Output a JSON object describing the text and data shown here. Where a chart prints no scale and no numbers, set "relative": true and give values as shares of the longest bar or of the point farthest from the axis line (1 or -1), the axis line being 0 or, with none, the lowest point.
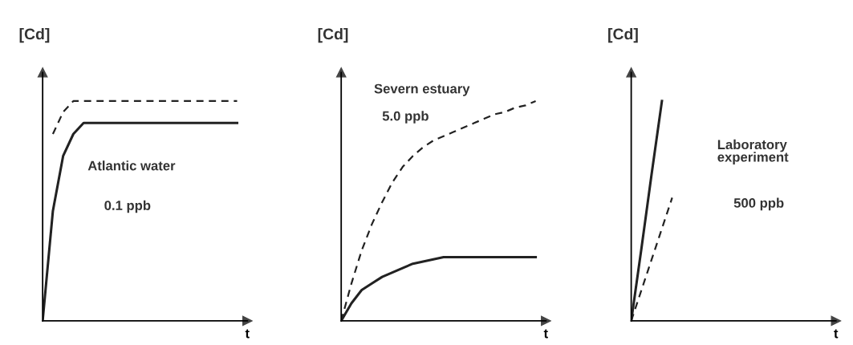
{
  "chart_data": [
    {
      "type": "line",
      "relative": true,
      "ylabel": "[Cd]",
      "xlabel": "t",
      "annotations": [
        "Atlantic water",
        "0.1 ppb"
      ],
      "tick_labels": false,
      "marker": "none",
      "categories": [
        null,
        null,
        null,
        null,
        null,
        null,
        null,
        null,
        null,
        null,
        null,
        null,
        null,
        null,
        null,
        null,
        null,
        null,
        null,
        null,
        null
      ],
      "series": [
        {
          "color": "#222222",
          "line_style": "solid",
          "values": [
            0,
            0.5,
            0.75,
            0.85,
            0.9,
            0.9,
            0.9,
            0.9,
            0.9,
            0.9,
            0.9,
            0.9,
            0.9,
            0.9,
            0.9,
            0.9,
            0.9,
            0.9,
            0.9,
            0.9,
            null
          ]
        },
        {
          "color": "#222222",
          "line_style": "dashed",
          "values": [
            null,
            0.85,
            0.95,
            1,
            1,
            1,
            1,
            1,
            1,
            1,
            1,
            1,
            1,
            1,
            1,
            1,
            1,
            1,
            1,
            1,
            null
          ]
        }
      ]
    },
    {
      "type": "line",
      "relative": true,
      "ylabel": "[Cd]",
      "xlabel": "t",
      "annotations": [
        "Severn estuary",
        "5.0 ppb"
      ],
      "tick_labels": false,
      "marker": "none",
      "categories": [
        null,
        null,
        null,
        null,
        null,
        null,
        null,
        null,
        null,
        null,
        null,
        null,
        null,
        null,
        null,
        null,
        null,
        null,
        null,
        null,
        null
      ],
      "series": [
        {
          "color": "#222222",
          "line_style": "solid",
          "values": [
            0,
            0.08,
            0.14,
            0.17,
            0.2,
            0.22,
            0.24,
            0.26,
            0.27,
            0.28,
            0.29,
            0.29,
            0.29,
            0.29,
            0.29,
            0.29,
            0.29,
            0.29,
            0.29,
            0.29,
            null
          ]
        },
        {
          "color": "#222222",
          "line_style": "dashed",
          "values": [
            0,
            0.17,
            0.32,
            0.44,
            0.54,
            0.63,
            0.7,
            0.75,
            0.79,
            0.82,
            0.84,
            0.86,
            0.88,
            0.9,
            0.92,
            0.94,
            0.95,
            0.97,
            0.98,
            1,
            null
          ]
        }
      ]
    },
    {
      "type": "line",
      "relative": true,
      "ylabel": "[Cd]",
      "xlabel": "t",
      "annotations": [
        "Laboratory\nexperiment",
        "500 ppb"
      ],
      "tick_labels": false,
      "marker": "none",
      "categories": [
        null,
        null,
        null,
        null,
        null,
        null,
        null,
        null,
        null,
        null,
        null,
        null,
        null,
        null,
        null,
        null,
        null,
        null,
        null,
        null,
        null
      ],
      "series": [
        {
          "color": "#222222",
          "line_style": "solid",
          "values": [
            0,
            0.33,
            0.67,
            1,
            null,
            null,
            null,
            null,
            null,
            null,
            null,
            null,
            null,
            null,
            null,
            null,
            null,
            null,
            null,
            null,
            null
          ]
        },
        {
          "color": "#222222",
          "line_style": "dashed",
          "values": [
            0,
            0.14,
            0.28,
            0.42,
            0.56,
            null,
            null,
            null,
            null,
            null,
            null,
            null,
            null,
            null,
            null,
            null,
            null,
            null,
            null,
            null,
            null
          ]
        }
      ]
    }
  ]
}
